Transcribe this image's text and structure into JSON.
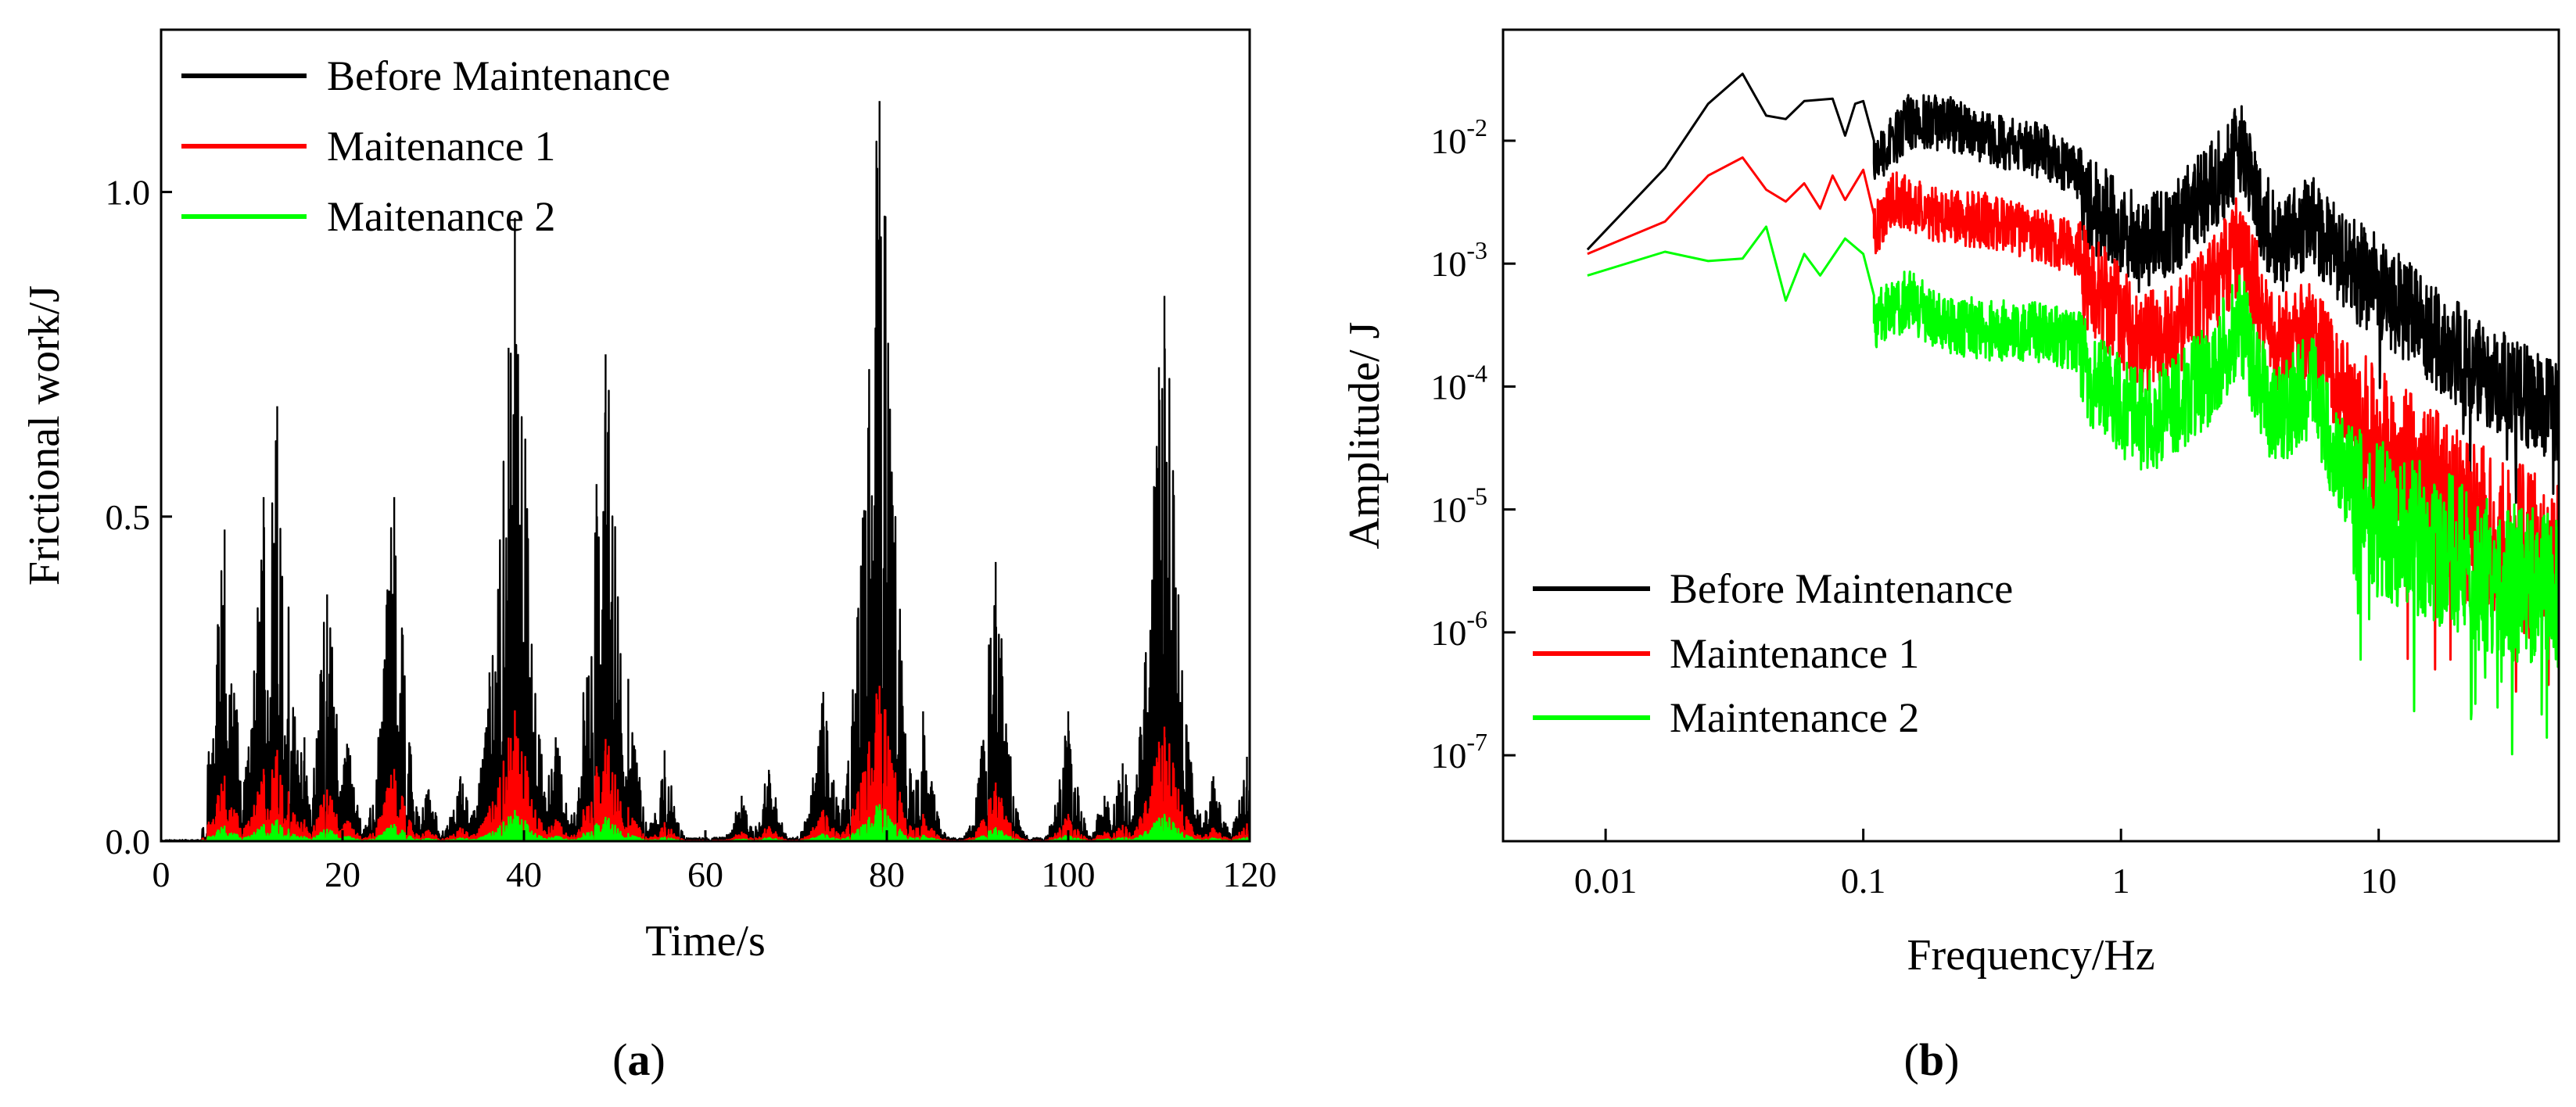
{
  "chart_data": [
    {
      "id": "a",
      "type": "line",
      "panel_label_prefix": "(",
      "panel_label_letter": "a",
      "panel_label_suffix": ")",
      "xlabel": "Time/s",
      "ylabel": "Frictional work/J",
      "xlim": [
        0,
        120
      ],
      "ylim": [
        0,
        1.25
      ],
      "xticks": [
        0,
        20,
        40,
        60,
        80,
        100,
        120
      ],
      "xtick_labels": [
        "0",
        "20",
        "40",
        "60",
        "80",
        "100",
        "120"
      ],
      "yticks": [
        0,
        0.5,
        1.0
      ],
      "ytick_labels": [
        "0.0",
        "0.5",
        "1.0"
      ],
      "legend_position": "top-left",
      "series": [
        {
          "name": "Before Maintenance",
          "color": "#000000",
          "scale": 1.0,
          "peaks": [
            [
              7,
              0.48
            ],
            [
              11.3,
              0.53
            ],
            [
              12.8,
              0.67
            ],
            [
              15.8,
              0.16
            ],
            [
              18.3,
              0.38
            ],
            [
              20.5,
              0.15
            ],
            [
              25.7,
              0.53
            ],
            [
              29.5,
              0.08
            ],
            [
              33,
              0.1
            ],
            [
              36.2,
              0.26
            ],
            [
              38.3,
              0.76
            ],
            [
              39,
              0.96
            ],
            [
              40.8,
              0.2
            ],
            [
              43.5,
              0.16
            ],
            [
              48,
              0.55
            ],
            [
              49,
              0.75
            ],
            [
              51.5,
              0.25
            ],
            [
              55.5,
              0.14
            ],
            [
              64,
              0.07
            ],
            [
              67,
              0.11
            ],
            [
              73,
              0.23
            ],
            [
              77.5,
              0.51
            ],
            [
              79.2,
              1.14
            ],
            [
              84,
              0.2
            ],
            [
              92,
              0.43
            ],
            [
              100,
              0.2
            ],
            [
              104,
              0.07
            ],
            [
              106,
              0.12
            ],
            [
              108.5,
              0.24
            ],
            [
              110,
              0.73
            ],
            [
              110.6,
              0.84
            ],
            [
              113,
              0.18
            ],
            [
              116,
              0.1
            ],
            [
              119.7,
              0.13
            ]
          ]
        },
        {
          "name": "Maitenance 1",
          "color": "#ff0000",
          "scale": 0.21,
          "peaks": [
            [
              7,
              0.48
            ],
            [
              11.3,
              0.53
            ],
            [
              12.8,
              0.67
            ],
            [
              15.8,
              0.16
            ],
            [
              18.3,
              0.38
            ],
            [
              20.5,
              0.15
            ],
            [
              25.7,
              0.53
            ],
            [
              29.5,
              0.08
            ],
            [
              33,
              0.1
            ],
            [
              36.2,
              0.26
            ],
            [
              38.3,
              0.76
            ],
            [
              39,
              0.96
            ],
            [
              40.8,
              0.2
            ],
            [
              43.5,
              0.16
            ],
            [
              48,
              0.55
            ],
            [
              49,
              0.75
            ],
            [
              51.5,
              0.25
            ],
            [
              55.5,
              0.14
            ],
            [
              64,
              0.07
            ],
            [
              67,
              0.11
            ],
            [
              73,
              0.23
            ],
            [
              77.5,
              0.51
            ],
            [
              79.2,
              1.14
            ],
            [
              84,
              0.2
            ],
            [
              92,
              0.43
            ],
            [
              100,
              0.2
            ],
            [
              104,
              0.07
            ],
            [
              106,
              0.12
            ],
            [
              108.5,
              0.24
            ],
            [
              110,
              0.73
            ],
            [
              110.6,
              0.84
            ],
            [
              113,
              0.18
            ],
            [
              116,
              0.1
            ],
            [
              119.7,
              0.13
            ]
          ]
        },
        {
          "name": "Maitenance 2",
          "color": "#00ff00",
          "scale": 0.05,
          "peaks": [
            [
              7,
              0.48
            ],
            [
              11.3,
              0.53
            ],
            [
              12.8,
              0.67
            ],
            [
              15.8,
              0.16
            ],
            [
              18.3,
              0.38
            ],
            [
              20.5,
              0.15
            ],
            [
              25.7,
              0.53
            ],
            [
              29.5,
              0.08
            ],
            [
              33,
              0.1
            ],
            [
              36.2,
              0.26
            ],
            [
              38.3,
              0.76
            ],
            [
              39,
              0.96
            ],
            [
              40.8,
              0.2
            ],
            [
              43.5,
              0.16
            ],
            [
              48,
              0.55
            ],
            [
              49,
              0.75
            ],
            [
              51.5,
              0.25
            ],
            [
              55.5,
              0.14
            ],
            [
              64,
              0.07
            ],
            [
              67,
              0.11
            ],
            [
              73,
              0.23
            ],
            [
              77.5,
              0.51
            ],
            [
              79.2,
              1.14
            ],
            [
              84,
              0.2
            ],
            [
              92,
              0.43
            ],
            [
              100,
              0.2
            ],
            [
              104,
              0.07
            ],
            [
              106,
              0.12
            ],
            [
              108.5,
              0.24
            ],
            [
              110,
              0.73
            ],
            [
              110.6,
              0.84
            ],
            [
              113,
              0.18
            ],
            [
              116,
              0.1
            ],
            [
              119.7,
              0.13
            ]
          ]
        }
      ]
    },
    {
      "id": "b",
      "type": "line",
      "panel_label_prefix": "(",
      "panel_label_letter": "b",
      "panel_label_suffix": ")",
      "xlabel": "Frequency/Hz",
      "ylabel": "Amplitude/ J",
      "xscale": "log",
      "yscale": "log",
      "xlim": [
        0.004,
        50
      ],
      "ylim": [
        2e-08,
        0.08
      ],
      "xticks": [
        0.01,
        0.1,
        1,
        10
      ],
      "xtick_labels": [
        "0.01",
        "0.1",
        "1",
        "10"
      ],
      "yticks": [
        0.01,
        0.001,
        0.0001,
        1e-05,
        1e-06,
        1e-07
      ],
      "ytick_base": [
        "10",
        "10",
        "10",
        "10",
        "10",
        "10"
      ],
      "ytick_exp": [
        "-2",
        "-3",
        "-4",
        "-5",
        "-6",
        "-7"
      ],
      "legend_position": "lower-left",
      "series": [
        {
          "name": "Before Maintenance",
          "color": "#000000",
          "points": [
            [
              0.0085,
              0.0013
            ],
            [
              0.017,
              0.006
            ],
            [
              0.025,
              0.02
            ],
            [
              0.034,
              0.035
            ],
            [
              0.042,
              0.016
            ],
            [
              0.05,
              0.015
            ],
            [
              0.059,
              0.021
            ],
            [
              0.076,
              0.022
            ],
            [
              0.085,
              0.011
            ],
            [
              0.093,
              0.02
            ],
            [
              0.1,
              0.021
            ],
            [
              0.11,
              0.01
            ],
            [
              0.15,
              0.021
            ],
            [
              0.22,
              0.02
            ],
            [
              0.3,
              0.015
            ],
            [
              0.5,
              0.012
            ],
            [
              0.7,
              0.0075
            ],
            [
              0.9,
              0.005
            ],
            [
              1.2,
              0.003
            ],
            [
              1.6,
              0.0045
            ],
            [
              2.2,
              0.008
            ],
            [
              2.9,
              0.02
            ],
            [
              3.2,
              0.01
            ],
            [
              4,
              0.003
            ],
            [
              5.5,
              0.0045
            ],
            [
              7,
              0.0025
            ],
            [
              10,
              0.0015
            ],
            [
              15,
              0.0007
            ],
            [
              25,
              0.0003
            ],
            [
              48,
              0.00015
            ]
          ],
          "noise": [
            0.06,
            0.45,
            0.8,
            0.85
          ]
        },
        {
          "name": "Maintenance 1",
          "color": "#ff0000",
          "points": [
            [
              0.0085,
              0.0012
            ],
            [
              0.017,
              0.0022
            ],
            [
              0.025,
              0.0052
            ],
            [
              0.034,
              0.0073
            ],
            [
              0.042,
              0.004
            ],
            [
              0.05,
              0.0032
            ],
            [
              0.059,
              0.0045
            ],
            [
              0.068,
              0.0028
            ],
            [
              0.076,
              0.0052
            ],
            [
              0.085,
              0.0033
            ],
            [
              0.1,
              0.0058
            ],
            [
              0.11,
              0.0025
            ],
            [
              0.13,
              0.005
            ],
            [
              0.2,
              0.0035
            ],
            [
              0.3,
              0.0033
            ],
            [
              0.5,
              0.0024
            ],
            [
              0.7,
              0.0019
            ],
            [
              0.9,
              0.0011
            ],
            [
              1.2,
              0.00055
            ],
            [
              1.6,
              0.0006
            ],
            [
              2.2,
              0.0013
            ],
            [
              2.9,
              0.0035
            ],
            [
              3.2,
              0.0018
            ],
            [
              4,
              0.0005
            ],
            [
              5.5,
              0.0007
            ],
            [
              7,
              0.00022
            ],
            [
              10,
              0.00013
            ],
            [
              15,
              7e-05
            ],
            [
              25,
              3e-05
            ],
            [
              48,
              1.5e-05
            ]
          ],
          "noise": [
            0.06,
            0.45,
            0.85,
            1.4
          ]
        },
        {
          "name": "Maintenance 2",
          "color": "#00ff00",
          "points": [
            [
              0.0085,
              0.0008
            ],
            [
              0.017,
              0.00125
            ],
            [
              0.025,
              0.00105
            ],
            [
              0.034,
              0.0011
            ],
            [
              0.042,
              0.002
            ],
            [
              0.05,
              0.0005
            ],
            [
              0.059,
              0.0012
            ],
            [
              0.068,
              0.0008
            ],
            [
              0.085,
              0.0016
            ],
            [
              0.1,
              0.0012
            ],
            [
              0.11,
              0.00055
            ],
            [
              0.15,
              0.0008
            ],
            [
              0.2,
              0.0005
            ],
            [
              0.3,
              0.00045
            ],
            [
              0.5,
              0.00042
            ],
            [
              0.7,
              0.00035
            ],
            [
              0.9,
              0.0002
            ],
            [
              1.2,
              0.00012
            ],
            [
              1.6,
              0.00015
            ],
            [
              2.2,
              0.0003
            ],
            [
              2.9,
              0.0008
            ],
            [
              3.2,
              0.0004
            ],
            [
              4,
              0.00012
            ],
            [
              5.5,
              0.00025
            ],
            [
              7,
              5e-05
            ],
            [
              10,
              3.2e-05
            ],
            [
              15,
              2.2e-05
            ],
            [
              25,
              1.2e-05
            ],
            [
              48,
              8e-06
            ]
          ],
          "noise": [
            0.06,
            0.5,
            0.85,
            1.3
          ]
        }
      ]
    }
  ]
}
